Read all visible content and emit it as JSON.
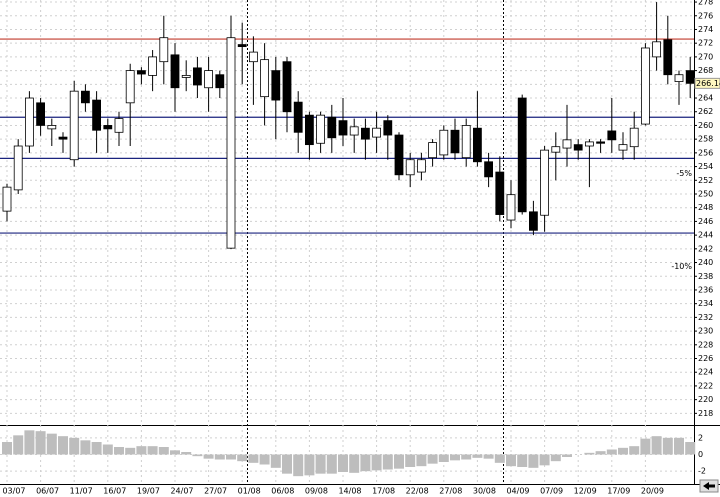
{
  "chart_data": [
    {
      "type": "candlestick",
      "categories": [
        "03/07",
        null,
        null,
        "06/07",
        null,
        null,
        "11/07",
        null,
        null,
        "16/07",
        null,
        null,
        "19/07",
        null,
        null,
        "24/07",
        null,
        null,
        "27/07",
        null,
        null,
        "01/08",
        null,
        null,
        "06/08",
        null,
        null,
        "09/08",
        null,
        null,
        "14/08",
        null,
        null,
        "17/08",
        null,
        null,
        "22/08",
        null,
        null,
        "27/08",
        null,
        null,
        "30/08",
        null,
        null,
        "04/09",
        null,
        null,
        "07/09",
        null,
        null,
        "12/09",
        null,
        null,
        "17/09",
        null,
        null,
        "20/09",
        null,
        null,
        null,
        null
      ],
      "open": [
        247.5,
        250.6,
        257,
        263.3,
        259.5,
        258.3,
        255,
        265,
        263.7,
        260,
        259,
        263.3,
        268,
        267.3,
        269.3,
        270.3,
        267,
        268.4,
        265.5,
        267.4,
        242.1,
        271.8,
        269.3,
        264.2,
        268,
        269.3,
        263.4,
        261.5,
        257.4,
        261.2,
        260.7,
        258.6,
        259.6,
        258.3,
        260.7,
        258.6,
        252.8,
        253.2,
        255.3,
        255.7,
        259.3,
        255.3,
        259.6,
        254.7,
        253.2,
        246.2,
        264,
        247.4,
        246.9,
        256.1,
        256.7,
        257.2,
        257,
        257.6,
        259.2,
        256.4,
        256.9,
        260.2,
        270,
        272.5,
        266.4,
        268
      ],
      "high": [
        251.5,
        258,
        265,
        264,
        261,
        259,
        266.5,
        266,
        265,
        261,
        262,
        269,
        268.5,
        271,
        276,
        272,
        269.5,
        270,
        270,
        268,
        276,
        275,
        273,
        272,
        270,
        270,
        265,
        262,
        262,
        263,
        264,
        261,
        261,
        262,
        261.5,
        259,
        256,
        256,
        258,
        260,
        261,
        261,
        265,
        256,
        255.5,
        252,
        264.5,
        249,
        257,
        259,
        263,
        258,
        258,
        258,
        264,
        259,
        262,
        272,
        278,
        276,
        268,
        270
      ],
      "low": [
        246,
        250,
        256,
        258.5,
        257,
        256,
        254,
        262,
        256,
        256,
        257,
        257,
        266,
        265,
        266,
        262,
        265,
        264,
        262,
        264,
        242,
        266,
        263,
        260,
        258,
        259,
        256,
        255,
        256,
        256,
        257,
        256,
        255,
        256,
        255,
        252,
        251,
        252,
        254,
        255,
        255,
        254,
        254,
        251,
        246,
        245,
        247,
        244,
        244.5,
        252,
        254,
        255,
        251,
        256,
        256,
        255,
        255,
        260,
        268,
        266,
        263,
        264
      ],
      "close": [
        251,
        257,
        264,
        260,
        260,
        258,
        265,
        263.3,
        259.3,
        259.5,
        261,
        268,
        267.5,
        270,
        272.8,
        265.5,
        267.3,
        265.9,
        268,
        265.5,
        272.8,
        271.5,
        270.7,
        269.6,
        263.7,
        262,
        259,
        257.2,
        261.5,
        258.2,
        258.6,
        259.8,
        258,
        259.6,
        258.6,
        252.8,
        255,
        255,
        257.5,
        259.3,
        256,
        260,
        254.7,
        252.5,
        247,
        249.9,
        247.4,
        244.7,
        256.4,
        256.9,
        257.9,
        256.4,
        257.6,
        257.4,
        257.9,
        257.2,
        259.6,
        271.3,
        272.2,
        267.4,
        267.4,
        266.14
      ],
      "up_color": "#ffffff",
      "down_color": "#000000",
      "ylim": [
        216.3,
        278.3
      ],
      "yticks": [
        218,
        220,
        222,
        224,
        226,
        228,
        230,
        232,
        234,
        236,
        238,
        240,
        242,
        244,
        246,
        248,
        250,
        252,
        254,
        256,
        258,
        260,
        262,
        264,
        266,
        268,
        270,
        272,
        274,
        276,
        278
      ],
      "grid": true,
      "last_price": 266.14,
      "lines": [
        {
          "value": 272.6,
          "color": "#c0392b"
        },
        {
          "value": 261.2,
          "color": "#1a237e"
        },
        {
          "value": 255.2,
          "color": "#1a237e"
        },
        {
          "value": 244.3,
          "color": "#1a237e"
        }
      ],
      "annotations": [
        {
          "text": "-5%",
          "y": 253,
          "color": "#c0392b"
        },
        {
          "text": "-10%",
          "y": 239.4,
          "color": "#c0392b"
        }
      ]
    },
    {
      "type": "bar",
      "values": [
        1.5,
        2.3,
        2.9,
        2.8,
        2.5,
        2.2,
        2.0,
        1.7,
        1.5,
        1.2,
        0.9,
        0.8,
        1.0,
        1.0,
        0.9,
        0.5,
        0.3,
        -0.2,
        -0.5,
        -0.6,
        -0.6,
        -0.8,
        -1.0,
        -1.2,
        -1.6,
        -2.3,
        -2.6,
        -2.5,
        -2.3,
        -2.3,
        -2.1,
        -2.2,
        -2.0,
        -1.9,
        -1.8,
        -1.7,
        -1.5,
        -1.4,
        -1.1,
        -0.9,
        -0.7,
        -0.6,
        -0.4,
        -0.5,
        -1.0,
        -1.4,
        -1.5,
        -1.6,
        -1.3,
        -0.8,
        -0.3,
        0.0,
        0.2,
        0.4,
        0.6,
        0.8,
        1.0,
        1.9,
        2.2,
        2.0,
        2.0,
        1.5
      ],
      "color": "#bdbdbd",
      "ylim": [
        -3.3,
        3.3
      ],
      "yticks": [
        -2,
        0,
        2
      ]
    }
  ]
}
